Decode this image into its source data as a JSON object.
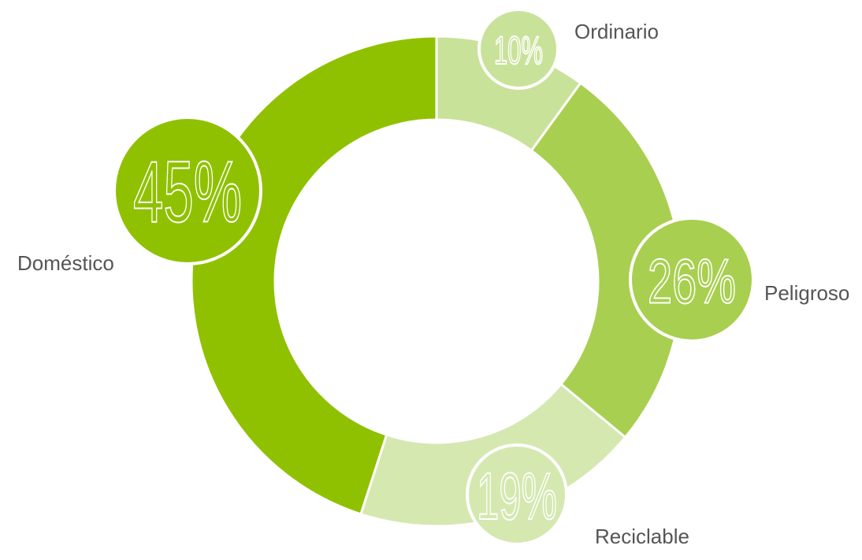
{
  "chart_data": {
    "type": "donut",
    "categories": [
      "Ordinario",
      "Peligroso",
      "Reciclable",
      "Doméstico"
    ],
    "values": [
      10,
      26,
      19,
      45
    ],
    "value_labels": [
      "10%",
      "26%",
      "19%",
      "45%"
    ],
    "colors": [
      "#c9e29a",
      "#a8cf50",
      "#d5e8b0",
      "#8fc100"
    ]
  }
}
